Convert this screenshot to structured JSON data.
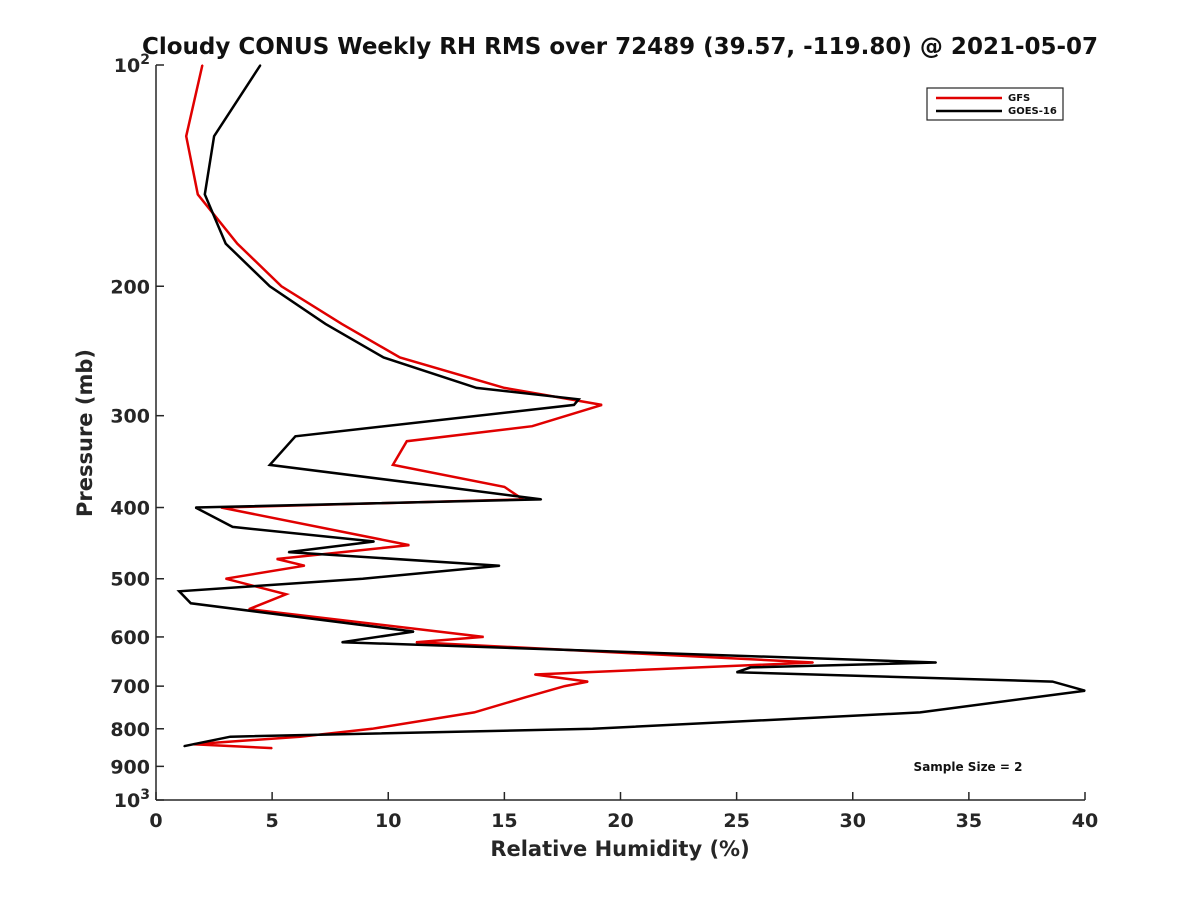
{
  "chart_data": {
    "type": "line",
    "title": "Cloudy CONUS Weekly RH RMS over 72489 (39.57, -119.80) @ 2021-05-07",
    "xlabel": "Relative Humidity (%)",
    "ylabel": "Pressure (mb)",
    "xlim": [
      0,
      40
    ],
    "ylim": [
      1000,
      100
    ],
    "y_scale": "log",
    "y_reversed": true,
    "grid": false,
    "legend_position": "top-right",
    "x_ticks": [
      {
        "value": 0,
        "label": "0"
      },
      {
        "value": 5,
        "label": "5"
      },
      {
        "value": 10,
        "label": "10"
      },
      {
        "value": 15,
        "label": "15"
      },
      {
        "value": 20,
        "label": "20"
      },
      {
        "value": 25,
        "label": "25"
      },
      {
        "value": 30,
        "label": "30"
      },
      {
        "value": 35,
        "label": "35"
      },
      {
        "value": 40,
        "label": "40"
      }
    ],
    "y_ticks": [
      {
        "value": 100,
        "label": "10",
        "sup": "2"
      },
      {
        "value": 200,
        "label": "200",
        "sup": ""
      },
      {
        "value": 300,
        "label": "300",
        "sup": ""
      },
      {
        "value": 400,
        "label": "400",
        "sup": ""
      },
      {
        "value": 500,
        "label": "500",
        "sup": ""
      },
      {
        "value": 600,
        "label": "600",
        "sup": ""
      },
      {
        "value": 700,
        "label": "700",
        "sup": ""
      },
      {
        "value": 800,
        "label": "800",
        "sup": ""
      },
      {
        "value": 900,
        "label": "900",
        "sup": ""
      },
      {
        "value": 1000,
        "label": "10",
        "sup": "3"
      }
    ],
    "series": [
      {
        "name": "GFS",
        "color": "#e00000",
        "points": [
          [
            2.0,
            100
          ],
          [
            1.3,
            125
          ],
          [
            1.8,
            150
          ],
          [
            3.5,
            175
          ],
          [
            5.4,
            200
          ],
          [
            8.0,
            225
          ],
          [
            10.5,
            250
          ],
          [
            15.0,
            275
          ],
          [
            19.2,
            290
          ],
          [
            16.2,
            310
          ],
          [
            10.8,
            325
          ],
          [
            10.2,
            350
          ],
          [
            15.0,
            375
          ],
          [
            15.8,
            390
          ],
          [
            2.8,
            400
          ],
          [
            10.9,
            450
          ],
          [
            5.2,
            470
          ],
          [
            6.4,
            480
          ],
          [
            3.0,
            500
          ],
          [
            5.6,
            525
          ],
          [
            4.0,
            550
          ],
          [
            14.1,
            600
          ],
          [
            11.2,
            610
          ],
          [
            28.3,
            650
          ],
          [
            16.3,
            675
          ],
          [
            18.6,
            690
          ],
          [
            17.6,
            700
          ],
          [
            15.9,
            725
          ],
          [
            13.7,
            760
          ],
          [
            9.3,
            800
          ],
          [
            6.2,
            820
          ],
          [
            1.6,
            840
          ],
          [
            5.0,
            850
          ]
        ]
      },
      {
        "name": "GOES-16",
        "color": "#000000",
        "points": [
          [
            4.5,
            100
          ],
          [
            2.5,
            125
          ],
          [
            2.1,
            150
          ],
          [
            3.0,
            175
          ],
          [
            4.9,
            200
          ],
          [
            7.3,
            225
          ],
          [
            9.8,
            250
          ],
          [
            13.8,
            275
          ],
          [
            18.2,
            285
          ],
          [
            18.0,
            290
          ],
          [
            6.0,
            320
          ],
          [
            4.9,
            350
          ],
          [
            12.4,
            375
          ],
          [
            16.6,
            390
          ],
          [
            1.7,
            400
          ],
          [
            3.3,
            425
          ],
          [
            9.4,
            445
          ],
          [
            5.7,
            460
          ],
          [
            14.8,
            480
          ],
          [
            8.9,
            500
          ],
          [
            1.0,
            520
          ],
          [
            1.5,
            540
          ],
          [
            11.1,
            590
          ],
          [
            8.0,
            610
          ],
          [
            33.6,
            650
          ],
          [
            25.6,
            660
          ],
          [
            25.0,
            670
          ],
          [
            38.6,
            690
          ],
          [
            40.0,
            710
          ],
          [
            32.9,
            760
          ],
          [
            18.8,
            800
          ],
          [
            3.2,
            820
          ],
          [
            1.2,
            845
          ]
        ]
      }
    ],
    "annotations": [
      {
        "text": "Sample Size = 2"
      }
    ]
  }
}
